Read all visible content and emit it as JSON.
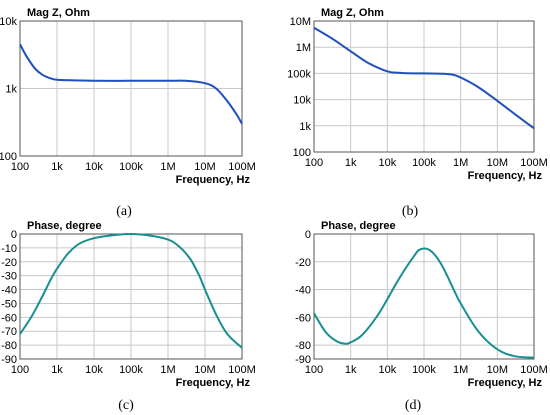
{
  "chart_data": [
    {
      "id": "a",
      "type": "line",
      "subfigure_label": "(a)",
      "title": "Mag Z, Ohm",
      "xlabel": "Frequency, Hz",
      "xscale": "log",
      "yscale": "log",
      "xlim": [
        100,
        100000000
      ],
      "ylim": [
        100,
        10000
      ],
      "xticks": [
        100,
        1000,
        10000,
        100000,
        1000000,
        10000000,
        100000000
      ],
      "xtick_labels": [
        "100",
        "1k",
        "10k",
        "100k",
        "1M",
        "10M",
        "100M"
      ],
      "yticks": [
        100,
        1000,
        10000
      ],
      "ytick_labels": [
        "100",
        "1k",
        "10k"
      ],
      "grid": true,
      "series": [
        {
          "color": "#1f4fbf",
          "x": [
            100,
            150,
            250,
            400,
            700,
            1000,
            3000,
            10000,
            100000,
            1000000,
            3000000,
            10000000,
            20000000,
            40000000,
            70000000,
            100000000
          ],
          "y": [
            4500,
            3000,
            2000,
            1600,
            1400,
            1350,
            1320,
            1300,
            1300,
            1300,
            1300,
            1200,
            1000,
            650,
            420,
            300
          ]
        }
      ]
    },
    {
      "id": "b",
      "type": "line",
      "subfigure_label": "(b)",
      "title": "Mag Z, Ohm",
      "xlabel": "Frequency, Hz",
      "xscale": "log",
      "yscale": "log",
      "xlim": [
        100,
        100000000
      ],
      "ylim": [
        100,
        10000000
      ],
      "xticks": [
        100,
        1000,
        10000,
        100000,
        1000000,
        10000000,
        100000000
      ],
      "xtick_labels": [
        "100",
        "1k",
        "10k",
        "100k",
        "1M",
        "10M",
        "100M"
      ],
      "yticks": [
        100,
        1000,
        10000,
        100000,
        1000000,
        10000000
      ],
      "ytick_labels": [
        "100",
        "1k",
        "10k",
        "100k",
        "1M",
        "10M"
      ],
      "grid": true,
      "series": [
        {
          "color": "#1f4fbf",
          "x": [
            100,
            300,
            1000,
            3000,
            10000,
            20000,
            50000,
            100000,
            300000,
            600000,
            1000000,
            3000000,
            10000000,
            30000000,
            100000000
          ],
          "y": [
            5500000,
            2200000,
            700000,
            250000,
            120000,
            105000,
            100000,
            100000,
            97000,
            90000,
            70000,
            30000,
            9000,
            2800,
            800
          ]
        }
      ]
    },
    {
      "id": "c",
      "type": "line",
      "subfigure_label": "(c)",
      "title": "Phase, degree",
      "xlabel": "Frequency, Hz",
      "xscale": "log",
      "yscale": "linear",
      "xlim": [
        100,
        100000000
      ],
      "ylim": [
        -90,
        0
      ],
      "xticks": [
        100,
        1000,
        10000,
        100000,
        1000000,
        10000000,
        100000000
      ],
      "xtick_labels": [
        "100",
        "1k",
        "10k",
        "100k",
        "1M",
        "10M",
        "100M"
      ],
      "yticks": [
        0,
        -10,
        -20,
        -30,
        -40,
        -50,
        -60,
        -70,
        -80,
        -90
      ],
      "ytick_labels": [
        "0",
        "-10",
        "-20",
        "-30",
        "-40",
        "-50",
        "-60",
        "-70",
        "-80",
        "-90"
      ],
      "grid": true,
      "series": [
        {
          "color": "#1a8f8f",
          "x": [
            100,
            200,
            400,
            700,
            1000,
            2000,
            4000,
            10000,
            30000,
            100000,
            300000,
            1000000,
            2000000,
            4000000,
            7000000,
            10000000,
            20000000,
            40000000,
            100000000
          ],
          "y": [
            -72,
            -60,
            -45,
            -32,
            -25,
            -14,
            -7,
            -3,
            -1,
            0,
            -1,
            -4,
            -9,
            -18,
            -30,
            -40,
            -58,
            -72,
            -82
          ]
        }
      ]
    },
    {
      "id": "d",
      "type": "line",
      "subfigure_label": "(d)",
      "title": "Phase, degree",
      "xlabel": "Frequency, Hz",
      "xscale": "log",
      "yscale": "linear",
      "xlim": [
        100,
        100000000
      ],
      "ylim": [
        -90,
        0
      ],
      "xticks": [
        100,
        1000,
        10000,
        100000,
        1000000,
        10000000,
        100000000
      ],
      "xtick_labels": [
        "100",
        "1k",
        "10k",
        "100k",
        "1M",
        "10M",
        "100M"
      ],
      "yticks": [
        0,
        -20,
        -40,
        -60,
        -80,
        -90
      ],
      "ytick_labels": [
        "0",
        "-20",
        "-40",
        "-60",
        "-80",
        "-90"
      ],
      "grid": true,
      "series": [
        {
          "color": "#1a8f8f",
          "x": [
            100,
            200,
            400,
            700,
            1000,
            2000,
            5000,
            10000,
            20000,
            50000,
            80000,
            150000,
            300000,
            700000,
            1000000,
            3000000,
            10000000,
            30000000,
            100000000
          ],
          "y": [
            -57,
            -70,
            -77,
            -79,
            -78,
            -73,
            -60,
            -47,
            -33,
            -17,
            -11,
            -12,
            -22,
            -42,
            -50,
            -70,
            -83,
            -88,
            -89
          ]
        }
      ]
    }
  ]
}
